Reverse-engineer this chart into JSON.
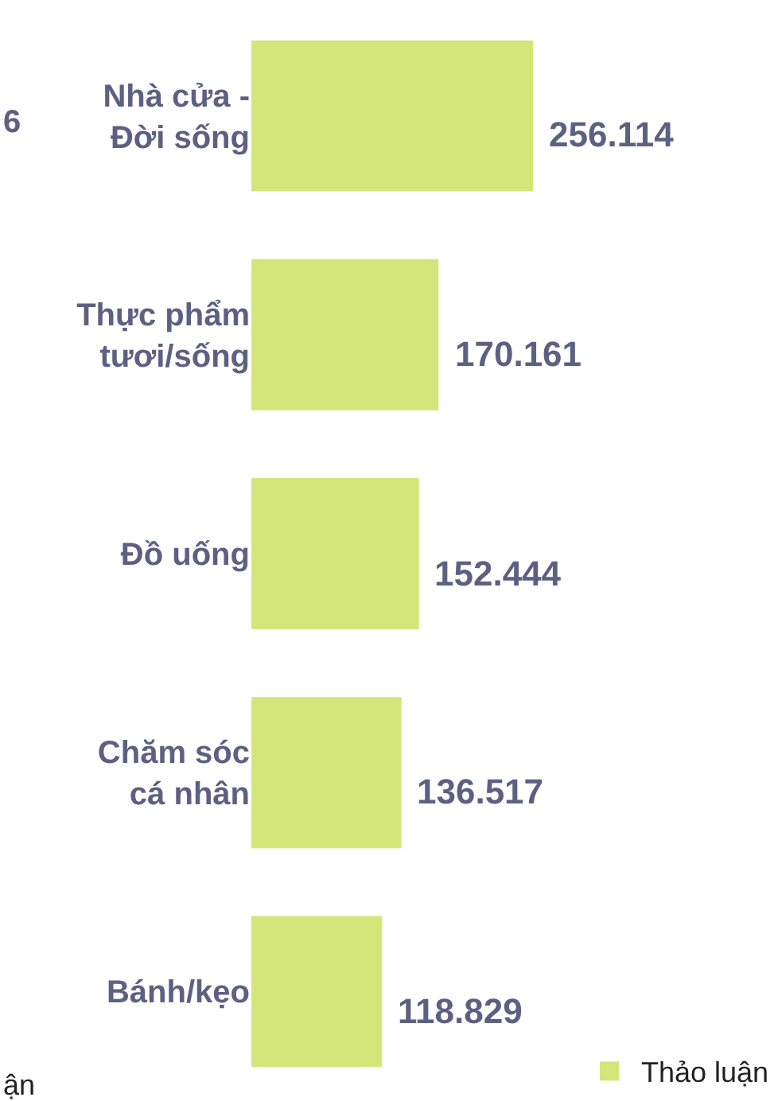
{
  "chart_data": {
    "type": "bar",
    "orientation": "horizontal",
    "categories": [
      "Nhà cửa -\nĐời sống",
      "Thực phẩm\ntươi/sống",
      "Đồ uống",
      "Chăm sóc\ncá nhân",
      "Bánh/kẹo"
    ],
    "series": [
      {
        "name": "Thảo luận",
        "color": "#d4e57a",
        "values": [
          256114,
          170161,
          152444,
          136517,
          118829
        ],
        "value_labels": [
          "256.114",
          "170.161",
          "152.444",
          "136.517",
          "118.829"
        ]
      }
    ],
    "legend": "bottom right",
    "annotations": [
      "6",
      "ận"
    ]
  }
}
